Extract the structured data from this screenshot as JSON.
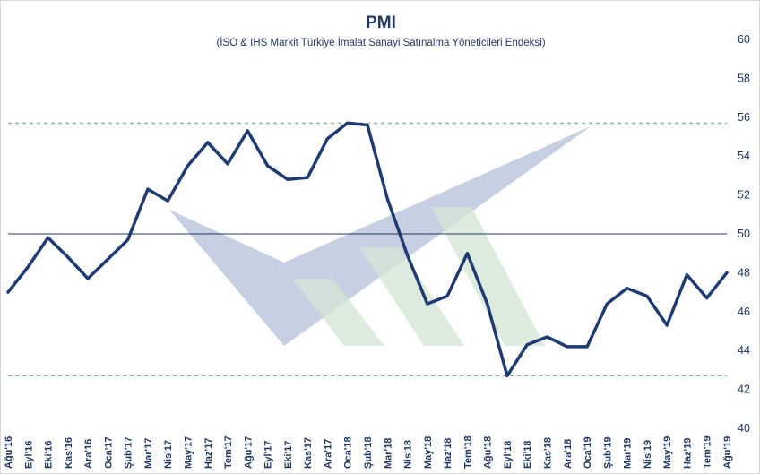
{
  "chart_data": {
    "type": "line",
    "title": "PMI",
    "subtitle": "(İSO & IHS Markit Türkiye İmalat Sanayi Satınalma Yöneticileri Endeksi)",
    "categories": [
      "Ağu'16",
      "Eyl'16",
      "Eki'16",
      "Kas'16",
      "Ara'16",
      "Oca'17",
      "Şub'17",
      "Mar'17",
      "Nis'17",
      "May'17",
      "Haz'17",
      "Tem'17",
      "Ağu'17",
      "Eyl'17",
      "Eki'17",
      "Kas'17",
      "Ara'17",
      "Oca'18",
      "Şub'18",
      "Mar'18",
      "Nis'18",
      "May'18",
      "Haz'18",
      "Tem'18",
      "Ağu'18",
      "Eyl'18",
      "Eki'18",
      "Kas'18",
      "Ara'18",
      "Oca'19",
      "Şub'19",
      "Mar'19",
      "Nis'19",
      "May'19",
      "Haz'19",
      "Tem'19",
      "Ağu'19"
    ],
    "series": [
      {
        "values": [
          47.0,
          48.3,
          49.8,
          48.8,
          47.7,
          48.7,
          49.7,
          52.3,
          51.7,
          53.5,
          54.7,
          53.6,
          55.3,
          53.5,
          52.8,
          52.9,
          54.9,
          55.7,
          55.6,
          51.8,
          48.9,
          46.4,
          46.8,
          49.0,
          46.4,
          42.7,
          44.3,
          44.7,
          44.2,
          44.2,
          46.4,
          47.2,
          46.8,
          45.3,
          47.9,
          46.7,
          48.0
        ],
        "color": "#1f3b73"
      }
    ],
    "ylim": [
      40,
      60
    ],
    "yticks": [
      40,
      42,
      44,
      46,
      48,
      50,
      52,
      54,
      56,
      58,
      60
    ],
    "y_axis_side": "right",
    "reference_lines": [
      {
        "value": 50,
        "style": "solid",
        "color": "#1f3864"
      },
      {
        "value": 55.7,
        "style": "dashed",
        "color": "#5b9b8a"
      },
      {
        "value": 42.7,
        "style": "dashed",
        "color": "#5b9b8a"
      }
    ],
    "grid": false,
    "legend": "none"
  },
  "colors": {
    "text": "#1f3864",
    "line": "#1f3b73",
    "watermark_blue": "#aeb9d4",
    "watermark_green": "#cfe3d0"
  }
}
